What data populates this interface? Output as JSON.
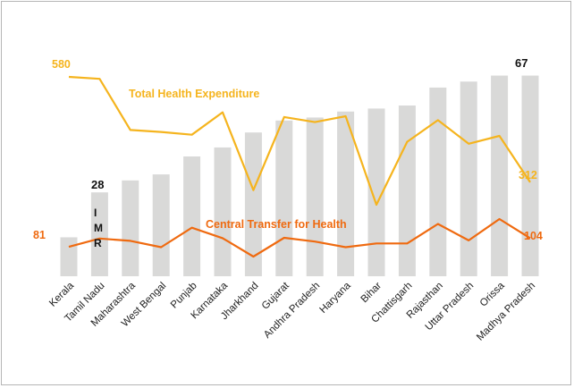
{
  "chart_data": {
    "type": "bar+line",
    "categories": [
      "Kerala",
      "Tamil Nadu",
      "Maharashtra",
      "West Bengal",
      "Punjab",
      "Karnataka",
      "Jharkhand",
      "Gujarat",
      "Andhra Pradesh",
      "Haryana",
      "Bihar",
      "Chattisgarh",
      "Rajasthan",
      "Uttar Pradesh",
      "Orissa",
      "Madhya Pradesh"
    ],
    "series": [
      {
        "name": "IMR",
        "kind": "bar",
        "axis_label": [
          "I",
          "M",
          "R"
        ],
        "values": [
          13,
          28,
          32,
          34,
          40,
          43,
          48,
          52,
          53,
          55,
          56,
          57,
          63,
          65,
          67,
          67
        ],
        "labels": {
          "first": "",
          "second": "28",
          "last": "67"
        },
        "color": "#d9d9d8"
      },
      {
        "name": "Total Health Expenditure",
        "kind": "line",
        "values": [
          580,
          575,
          445,
          440,
          433,
          490,
          292,
          478,
          465,
          480,
          255,
          415,
          470,
          410,
          430,
          312
        ],
        "labels": {
          "first": "580",
          "last": "312"
        },
        "color": "#f5b41e"
      },
      {
        "name": "Central Transfer for Health",
        "kind": "line",
        "values": [
          81,
          103,
          97,
          80,
          132,
          104,
          55,
          105,
          95,
          80,
          90,
          90,
          142,
          98,
          155,
          104
        ],
        "labels": {
          "first": "81",
          "last": "104"
        },
        "color": "#ef6a10"
      }
    ],
    "title": "",
    "xlabel": "",
    "ylabel": "IMR"
  }
}
